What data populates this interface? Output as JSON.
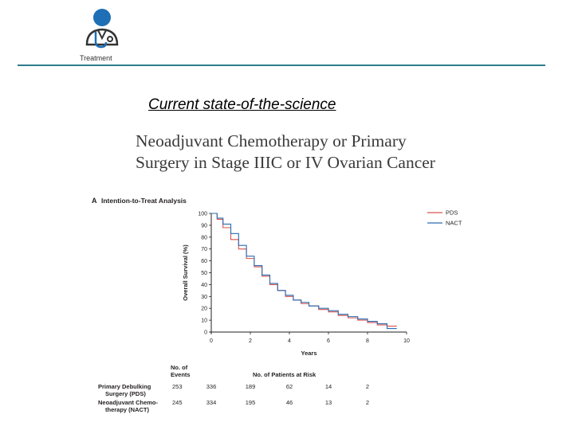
{
  "header": {
    "logo_icon": "doctor-stethoscope-icon",
    "logo_label": "Treatment",
    "accent_color": "#2e7d8c",
    "icon_color": "#1e6fb5"
  },
  "slide": {
    "title": "Current state-of-the-science",
    "paper_title_line1": "Neoadjuvant Chemotherapy or Primary",
    "paper_title_line2": "Surgery in Stage IIIC or IV Ovarian Cancer"
  },
  "chart_data": {
    "type": "line",
    "panel_label": "A",
    "title": "Intention-to-Treat Analysis",
    "xlabel": "Years",
    "ylabel": "Overall Survival (%)",
    "xlim": [
      0,
      10
    ],
    "ylim": [
      0,
      100
    ],
    "xticks": [
      0,
      2,
      4,
      6,
      8,
      10
    ],
    "yticks": [
      0,
      10,
      20,
      30,
      40,
      50,
      60,
      70,
      80,
      90,
      100
    ],
    "legend_position": "top-right",
    "series": [
      {
        "name": "PDS",
        "color": "#d9534f",
        "x": [
          0,
          0.3,
          0.6,
          1.0,
          1.4,
          1.8,
          2.2,
          2.6,
          3.0,
          3.4,
          3.8,
          4.2,
          4.6,
          5.0,
          5.5,
          6.0,
          6.5,
          7.0,
          7.5,
          8.0,
          8.5,
          9.0,
          9.5
        ],
        "y": [
          100,
          95,
          88,
          78,
          70,
          62,
          55,
          47,
          40,
          35,
          30,
          27,
          24,
          22,
          19,
          17,
          14,
          12,
          10,
          8,
          6,
          5,
          5
        ]
      },
      {
        "name": "NACT",
        "color": "#2a6db0",
        "x": [
          0,
          0.3,
          0.6,
          1.0,
          1.4,
          1.8,
          2.2,
          2.6,
          3.0,
          3.4,
          3.8,
          4.2,
          4.6,
          5.0,
          5.5,
          6.0,
          6.5,
          7.0,
          7.5,
          8.0,
          8.5,
          9.0,
          9.5
        ],
        "y": [
          100,
          96,
          91,
          83,
          73,
          64,
          56,
          48,
          41,
          35,
          31,
          27,
          25,
          22,
          20,
          18,
          15,
          13,
          11,
          9,
          7,
          3,
          3
        ]
      }
    ],
    "risk_table": {
      "events_header": "No. of\nEvents",
      "risk_header": "No. of Patients at Risk",
      "rows": [
        {
          "label_line1": "Primary Debulking",
          "label_line2": "Surgery (PDS)",
          "events": "253",
          "at_risk": [
            "336",
            "189",
            "62",
            "14",
            "2"
          ]
        },
        {
          "label_line1": "Neoadjuvant Chemo-",
          "label_line2": "therapy (NACT)",
          "events": "245",
          "at_risk": [
            "334",
            "195",
            "46",
            "13",
            "2"
          ]
        }
      ]
    }
  }
}
